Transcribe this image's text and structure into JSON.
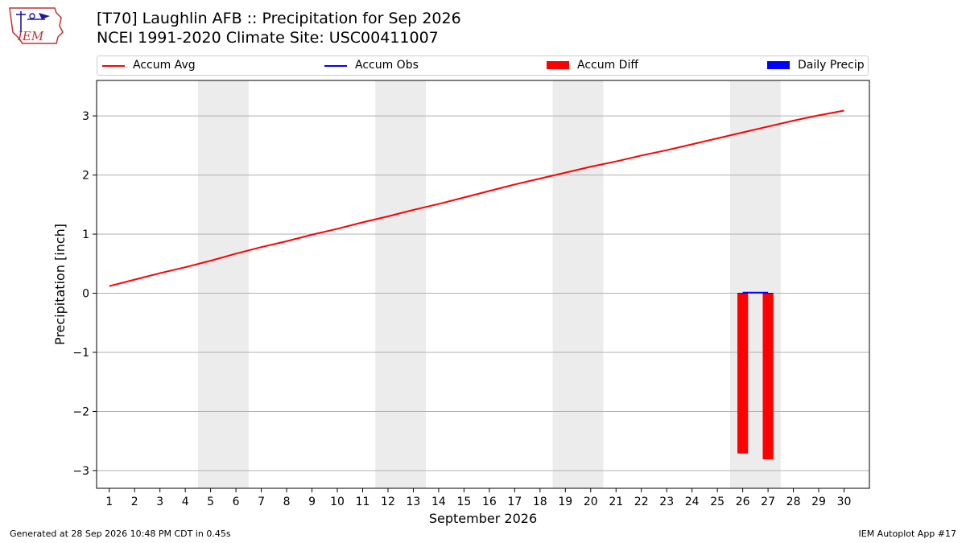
{
  "header": {
    "logo_text": "IEM",
    "title": "[T70] Laughlin AFB :: Precipitation for Sep 2026",
    "subtitle": "NCEI 1991-2020 Climate Site: USC00411007"
  },
  "legend": [
    {
      "label": "Accum Avg",
      "color": "#ff0000",
      "kind": "line"
    },
    {
      "label": "Accum Obs",
      "color": "#0000ff",
      "kind": "line"
    },
    {
      "label": "Accum Diff",
      "color": "#ff0000",
      "kind": "patch"
    },
    {
      "label": "Daily Precip",
      "color": "#0000ff",
      "kind": "patch"
    }
  ],
  "footer": {
    "left": "Generated at 28 Sep 2026 10:48 PM CDT in 0.45s",
    "right": "IEM Autoplot App #17"
  },
  "chart_data": {
    "type": "line",
    "xlabel": "September 2026",
    "ylabel": "Precipitation [inch]",
    "xlim": [
      0.5,
      31
    ],
    "ylim": [
      -3.3,
      3.6
    ],
    "x_ticks": [
      1,
      2,
      3,
      4,
      5,
      6,
      7,
      8,
      9,
      10,
      11,
      12,
      13,
      14,
      15,
      16,
      17,
      18,
      19,
      20,
      21,
      22,
      23,
      24,
      25,
      26,
      27,
      28,
      29,
      30
    ],
    "y_ticks": [
      3,
      2,
      1,
      0,
      -1,
      -2,
      -3
    ],
    "y_tick_labels": [
      "3",
      "2",
      "1",
      "0",
      "−1",
      "−2",
      "−3"
    ],
    "grid": "horizontal",
    "legend_position": "top",
    "weekend_shading": [
      [
        4.5,
        6.5
      ],
      [
        11.5,
        13.5
      ],
      [
        18.5,
        20.5
      ],
      [
        25.5,
        27.5
      ]
    ],
    "shade_color": "#ececec",
    "series": [
      {
        "name": "Accum Avg",
        "kind": "line",
        "color": "#ff0000",
        "x": [
          1,
          2,
          3,
          4,
          5,
          6,
          7,
          8,
          9,
          10,
          11,
          12,
          13,
          14,
          15,
          16,
          17,
          18,
          19,
          20,
          21,
          22,
          23,
          24,
          25,
          26,
          27,
          28,
          29,
          30
        ],
        "values": [
          0.12,
          0.23,
          0.34,
          0.44,
          0.55,
          0.67,
          0.78,
          0.88,
          0.99,
          1.09,
          1.2,
          1.3,
          1.41,
          1.51,
          1.62,
          1.73,
          1.84,
          1.94,
          2.04,
          2.14,
          2.23,
          2.33,
          2.42,
          2.52,
          2.62,
          2.72,
          2.82,
          2.92,
          3.01,
          3.09
        ]
      },
      {
        "name": "Accum Obs",
        "kind": "line",
        "color": "#0000ff",
        "x": [
          26,
          27
        ],
        "values": [
          0.01,
          0.01
        ]
      },
      {
        "name": "Accum Diff",
        "kind": "bar",
        "color": "#ff0000",
        "x": [
          26,
          27
        ],
        "values": [
          -2.71,
          -2.81
        ]
      },
      {
        "name": "Daily Precip",
        "kind": "bar",
        "color": "#0000ff",
        "x": [
          26,
          27
        ],
        "values": [
          0.0,
          0.0
        ]
      }
    ]
  }
}
